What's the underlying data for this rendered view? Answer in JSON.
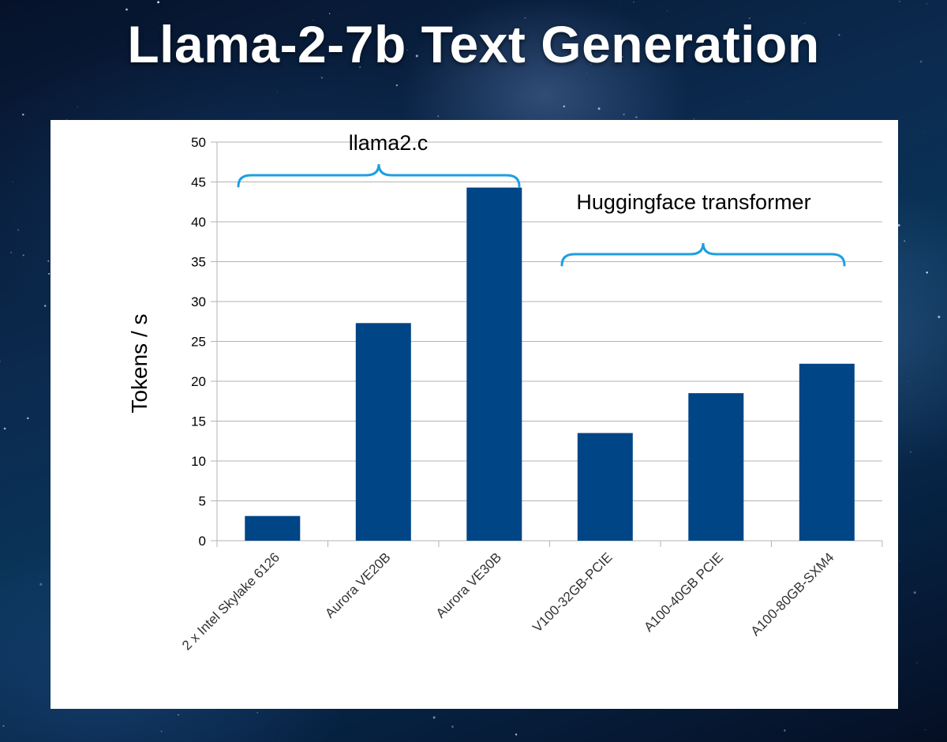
{
  "slide": {
    "title": "Llama-2-7b Text Generation"
  },
  "colors": {
    "bar": "#004586",
    "annotation": "#1e9fe0",
    "grid": "#b3b3b3",
    "text": "#000000"
  },
  "chart_data": {
    "type": "bar",
    "ylabel": "Tokens / s",
    "ylim": [
      0,
      50
    ],
    "yticks": [
      0,
      5,
      10,
      15,
      20,
      25,
      30,
      35,
      40,
      45,
      50
    ],
    "grid": true,
    "categories": [
      "2 x Intel Skylake 6126",
      "Aurora VE20B",
      "Aurora VE30B",
      "V100-32GB-PCIE",
      "A100-40GB PCIE",
      "A100-80GB-SXM4"
    ],
    "values": [
      3.1,
      27.3,
      44.3,
      13.5,
      18.5,
      22.2
    ],
    "annotations": [
      {
        "label": "llama2.c",
        "from_index": 0,
        "to_index": 2
      },
      {
        "label": "Huggingface transformer",
        "from_index": 3,
        "to_index": 5
      }
    ]
  }
}
